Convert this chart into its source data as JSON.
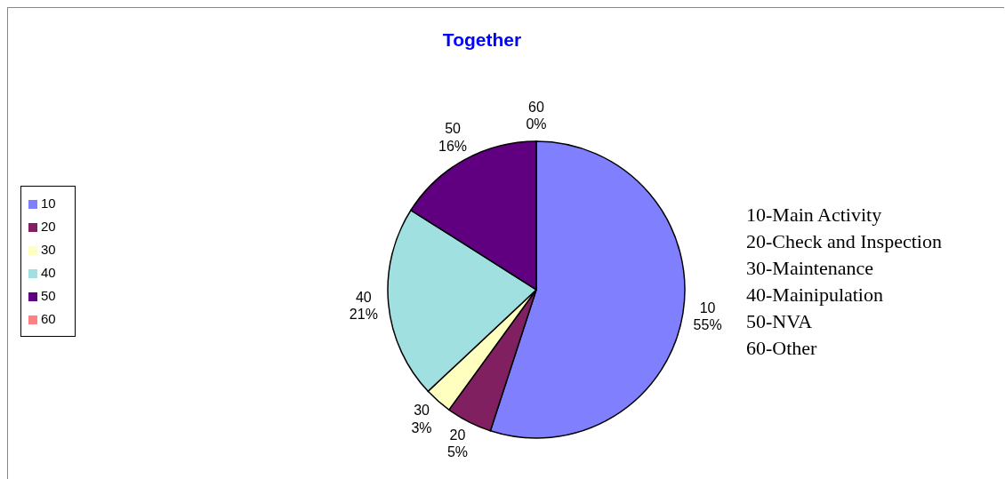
{
  "chart_data": {
    "type": "pie",
    "title": "Together",
    "categories": [
      "10",
      "20",
      "30",
      "40",
      "50",
      "60"
    ],
    "values": [
      55,
      5,
      3,
      21,
      16,
      0
    ],
    "colors": [
      "#8080ff",
      "#802060",
      "#ffffc0",
      "#a0e0e0",
      "#600080",
      "#ff8080"
    ],
    "value_labels": [
      "55%",
      "5%",
      "3%",
      "21%",
      "16%",
      "0%"
    ],
    "legend": "left",
    "annotations": [
      "10-Main Activity",
      "20-Check and Inspection",
      "30-Maintenance",
      "40-Mainipulation",
      "50-NVA",
      "60-Other"
    ]
  }
}
